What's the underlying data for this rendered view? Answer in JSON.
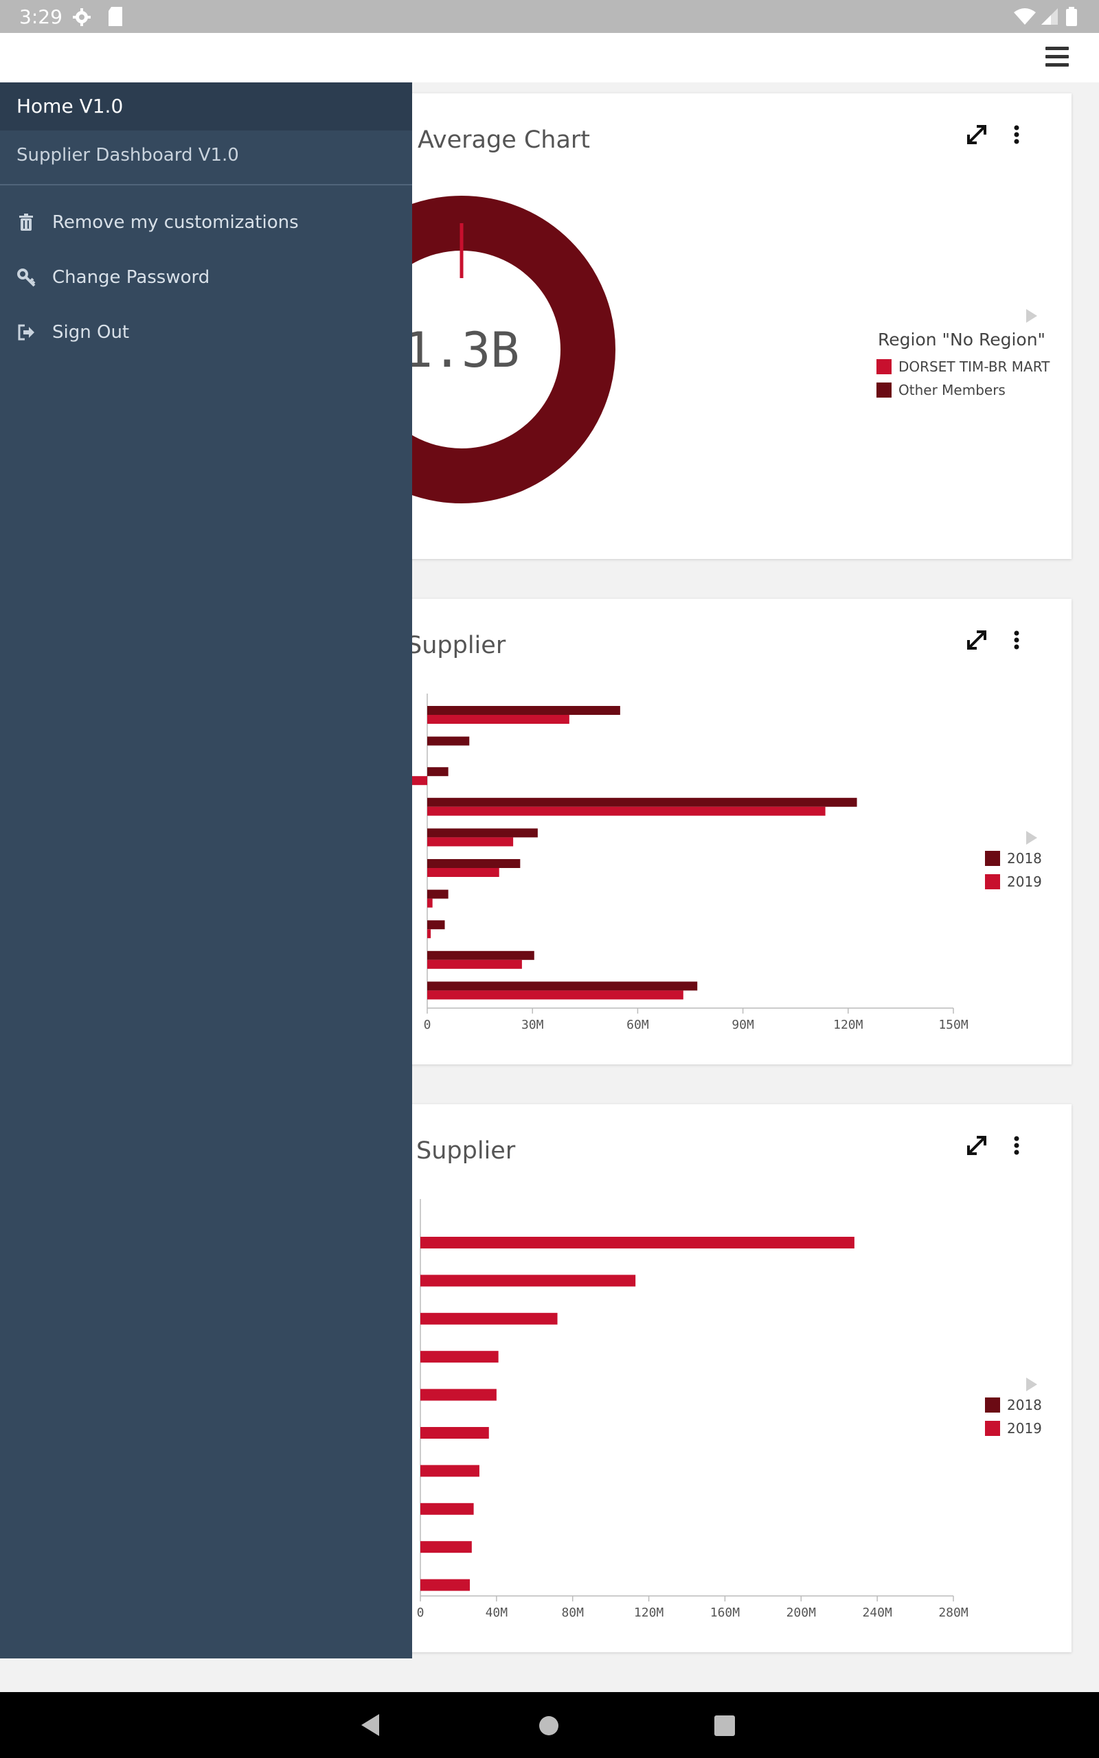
{
  "status_bar": {
    "time": "3:29"
  },
  "drawer": {
    "home_label": "Home V1.0",
    "dashboard_label": "Supplier Dashboard V1.0",
    "items": [
      {
        "label": "Remove my customizations",
        "icon": "trash-icon"
      },
      {
        "label": "Change Password",
        "icon": "key-icon"
      },
      {
        "label": "Sign Out",
        "icon": "sign-out-icon"
      }
    ]
  },
  "cards": {
    "donut": {
      "title": "Average Chart",
      "center_value": "1.3B",
      "legend_title": "Region \"No Region\"",
      "legend": [
        {
          "label": "DORSET TIM-BR MART",
          "color": "#c8102e"
        },
        {
          "label": "Other Members",
          "color": "#6b0a14"
        }
      ]
    },
    "bar1": {
      "title": "Supplier",
      "legend": [
        {
          "label": "2018",
          "color": "#6b0a14"
        },
        {
          "label": "2019",
          "color": "#c8102e"
        }
      ]
    },
    "bar2": {
      "title": "Supplier",
      "legend": [
        {
          "label": "2018",
          "color": "#6b0a14"
        },
        {
          "label": "2019",
          "color": "#c8102e"
        }
      ]
    }
  },
  "chart_data": [
    {
      "type": "pie",
      "center_label": "1.3B",
      "legend_title": "Region \"No Region\"",
      "series": [
        {
          "name": "DORSET TIM-BR MART",
          "value": 0.01
        },
        {
          "name": "Other Members",
          "value": 0.99
        }
      ]
    },
    {
      "type": "bar",
      "orientation": "horizontal",
      "xticks": [
        "0",
        "30M",
        "60M",
        "90M",
        "120M",
        "150M"
      ],
      "xlim": [
        0,
        150000000
      ],
      "series": [
        {
          "name": "2018",
          "color": "#6b0a14",
          "values": [
            55000000,
            12000000,
            6000000,
            122500000,
            31500000,
            26500000,
            6000000,
            5000000,
            30500000,
            77000000
          ]
        },
        {
          "name": "2019",
          "color": "#c8102e",
          "values": [
            40500000,
            0,
            -5000000,
            113500000,
            24500000,
            20500000,
            1500000,
            1000000,
            27000000,
            73000000
          ]
        }
      ]
    },
    {
      "type": "bar",
      "orientation": "horizontal",
      "xticks": [
        "0",
        "40M",
        "80M",
        "120M",
        "160M",
        "200M",
        "240M",
        "280M"
      ],
      "xlim": [
        0,
        280000000
      ],
      "series": [
        {
          "name": "2018",
          "color": "#6b0a14",
          "values": []
        },
        {
          "name": "2019",
          "color": "#c8102e",
          "values": [
            228000000,
            113000000,
            72000000,
            41000000,
            40000000,
            36000000,
            31000000,
            28000000,
            27000000,
            26000000
          ]
        }
      ]
    }
  ]
}
